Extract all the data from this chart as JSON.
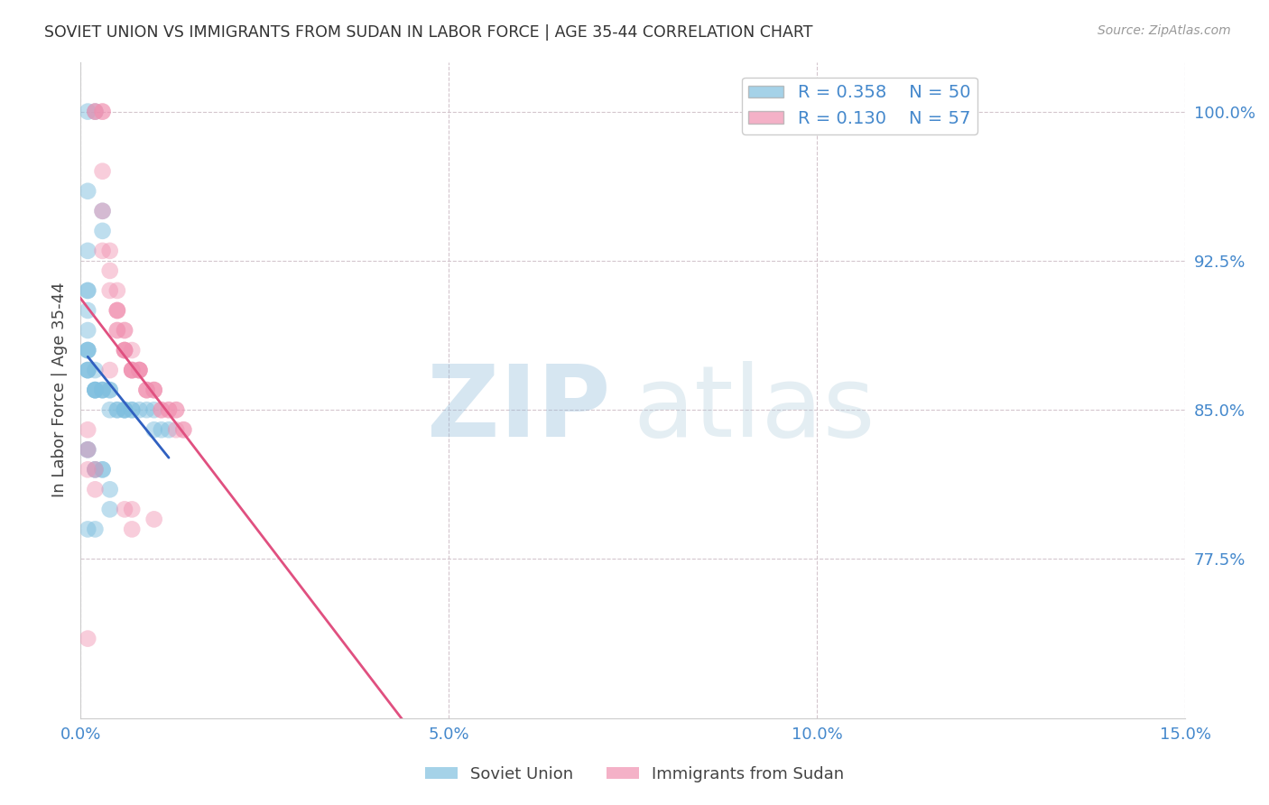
{
  "title": "SOVIET UNION VS IMMIGRANTS FROM SUDAN IN LABOR FORCE | AGE 35-44 CORRELATION CHART",
  "source": "Source: ZipAtlas.com",
  "ylabel": "In Labor Force | Age 35-44",
  "xlim": [
    0.0,
    0.15
  ],
  "ylim": [
    0.695,
    1.025
  ],
  "yticks": [
    0.775,
    0.85,
    0.925,
    1.0
  ],
  "ytick_labels": [
    "77.5%",
    "85.0%",
    "92.5%",
    "100.0%"
  ],
  "xticks": [
    0.0,
    0.05,
    0.1,
    0.15
  ],
  "xtick_labels": [
    "0.0%",
    "5.0%",
    "10.0%",
    "15.0%"
  ],
  "legend_soviet_r": "R = 0.358",
  "legend_soviet_n": "N = 50",
  "legend_sudan_r": "R = 0.130",
  "legend_sudan_n": "N = 57",
  "soviet_color": "#7fbfdf",
  "sudan_color": "#f090b0",
  "soviet_line_color": "#3060c0",
  "sudan_line_color": "#e05080",
  "background_color": "#ffffff",
  "title_color": "#333333",
  "axis_label_color": "#444444",
  "tick_label_color": "#4488cc",
  "soviet_x": [
    0.002,
    0.001,
    0.001,
    0.003,
    0.003,
    0.001,
    0.001,
    0.001,
    0.001,
    0.001,
    0.001,
    0.001,
    0.001,
    0.001,
    0.001,
    0.001,
    0.002,
    0.002,
    0.002,
    0.002,
    0.002,
    0.003,
    0.003,
    0.003,
    0.004,
    0.004,
    0.004,
    0.005,
    0.005,
    0.006,
    0.006,
    0.006,
    0.007,
    0.007,
    0.008,
    0.009,
    0.01,
    0.01,
    0.011,
    0.012,
    0.001,
    0.001,
    0.002,
    0.002,
    0.003,
    0.003,
    0.004,
    0.004,
    0.002,
    0.001
  ],
  "soviet_y": [
    1.0,
    1.0,
    0.96,
    0.95,
    0.94,
    0.93,
    0.91,
    0.91,
    0.9,
    0.89,
    0.88,
    0.88,
    0.88,
    0.87,
    0.87,
    0.87,
    0.87,
    0.86,
    0.86,
    0.86,
    0.86,
    0.86,
    0.86,
    0.86,
    0.86,
    0.86,
    0.85,
    0.85,
    0.85,
    0.85,
    0.85,
    0.85,
    0.85,
    0.85,
    0.85,
    0.85,
    0.85,
    0.84,
    0.84,
    0.84,
    0.83,
    0.83,
    0.82,
    0.82,
    0.82,
    0.82,
    0.81,
    0.8,
    0.79,
    0.79
  ],
  "sudan_x": [
    0.001,
    0.002,
    0.002,
    0.003,
    0.003,
    0.003,
    0.003,
    0.003,
    0.004,
    0.004,
    0.004,
    0.005,
    0.005,
    0.005,
    0.005,
    0.005,
    0.005,
    0.006,
    0.006,
    0.006,
    0.006,
    0.006,
    0.006,
    0.007,
    0.007,
    0.007,
    0.007,
    0.007,
    0.008,
    0.008,
    0.008,
    0.008,
    0.009,
    0.009,
    0.009,
    0.01,
    0.01,
    0.01,
    0.011,
    0.011,
    0.012,
    0.012,
    0.013,
    0.013,
    0.013,
    0.014,
    0.014,
    0.001,
    0.001,
    0.001,
    0.002,
    0.002,
    0.006,
    0.007,
    0.007,
    0.01,
    0.004
  ],
  "sudan_y": [
    0.735,
    1.0,
    1.0,
    1.0,
    1.0,
    0.97,
    0.95,
    0.93,
    0.93,
    0.92,
    0.91,
    0.91,
    0.9,
    0.9,
    0.9,
    0.89,
    0.89,
    0.89,
    0.89,
    0.88,
    0.88,
    0.88,
    0.88,
    0.88,
    0.87,
    0.87,
    0.87,
    0.87,
    0.87,
    0.87,
    0.87,
    0.87,
    0.86,
    0.86,
    0.86,
    0.86,
    0.86,
    0.86,
    0.85,
    0.85,
    0.85,
    0.85,
    0.85,
    0.85,
    0.84,
    0.84,
    0.84,
    0.84,
    0.83,
    0.82,
    0.82,
    0.81,
    0.8,
    0.8,
    0.79,
    0.795,
    0.87
  ]
}
